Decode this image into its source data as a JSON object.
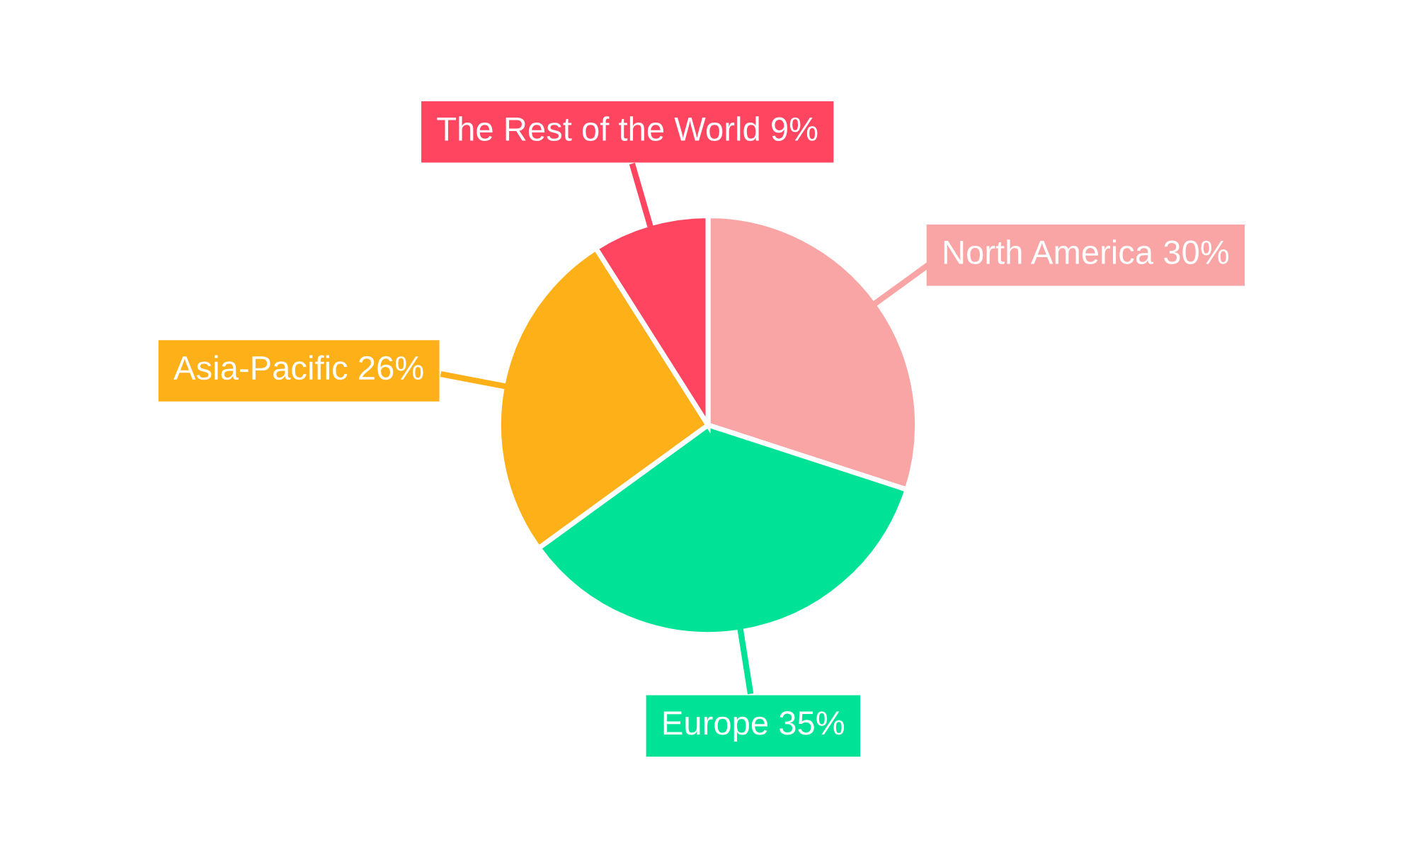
{
  "chart_data": {
    "type": "pie",
    "categories": [
      "North America",
      "Europe",
      "Asia-Pacific",
      "The Rest of the World"
    ],
    "values": [
      30,
      35,
      26,
      9
    ],
    "colors": [
      "#f9a4a5",
      "#00e396",
      "#feb019",
      "#ff4560"
    ],
    "value_labels": [
      "30%",
      "35%",
      "26%",
      "9%"
    ],
    "legend": false
  }
}
